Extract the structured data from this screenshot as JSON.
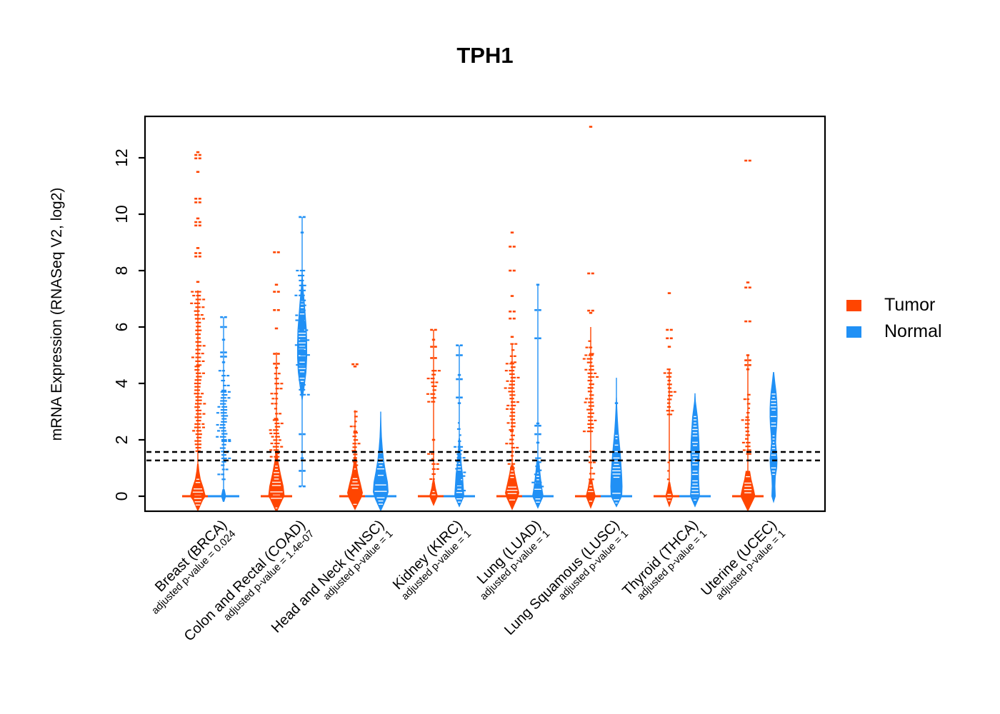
{
  "title": "TPH1",
  "y_axis": {
    "label": "mRNA Expression (RNASeq V2, log2)",
    "ticks": [
      0,
      2,
      4,
      6,
      8,
      10,
      12
    ]
  },
  "legend": {
    "items": [
      {
        "label": "Tumor",
        "color": "#FF4500"
      },
      {
        "label": "Normal",
        "color": "#2090F5"
      }
    ]
  },
  "chart_data": {
    "type": "scatter",
    "subtype": "beeswarm-strip-by-group",
    "title": "TPH1",
    "xlabel": "",
    "ylabel": "mRNA Expression (RNASeq V2, log2)",
    "ylim": [
      -0.6,
      13.5
    ],
    "yticks": [
      0,
      2,
      4,
      6,
      8,
      10,
      12
    ],
    "grid": false,
    "legend_position": "right",
    "threshold_lines": [
      1.57,
      1.27
    ],
    "series_colors": {
      "tumor": "#FF4500",
      "normal": "#2090F5"
    },
    "series_names": [
      "Tumor",
      "Normal"
    ],
    "categories": [
      "Breast (BRCA)",
      "Colon and Rectal (COAD)",
      "Head and Neck (HNSC)",
      "Kidney (KIRC)",
      "Lung (LUAD)",
      "Lung Squamous (LUSC)",
      "Thyroid (THCA)",
      "Uterine (UCEC)"
    ],
    "groups": [
      {
        "label": "Breast (BRCA)",
        "pvalue_label": "adjusted p-value = 0.024",
        "adjusted_p_value": 0.024,
        "tumor": {
          "median": 0,
          "line": [
            0,
            7.3
          ],
          "violin": [
            [
              -0.55,
              0
            ],
            [
              -0.15,
              7
            ],
            [
              0,
              11
            ],
            [
              0.3,
              8
            ],
            [
              0.6,
              4
            ],
            [
              0.9,
              2
            ],
            [
              1.15,
              1
            ]
          ],
          "clusters": [
            [
              1.6,
              4.6,
              26,
              7
            ],
            [
              4.65,
              7.25,
              20,
              6
            ]
          ],
          "outliers": [
            7.6,
            8.5,
            8.62,
            8.8,
            9.6,
            9.72,
            9.85,
            10.42,
            10.55,
            11.5,
            11.98,
            12.1,
            12.2
          ]
        },
        "normal": {
          "median": 0,
          "line": [
            0,
            6.35
          ],
          "violin": [
            [
              -0.2,
              1
            ],
            [
              0,
              3.5
            ],
            [
              0.25,
              1.5
            ]
          ],
          "clusters": [
            [
              0.6,
              0.95,
              3,
              3
            ],
            [
              1.1,
              1.95,
              8,
              5
            ],
            [
              2.0,
              3.7,
              17,
              7
            ],
            [
              3.75,
              4.45,
              5,
              4
            ]
          ],
          "outliers": [
            4.75,
            4.95,
            5.1,
            5.55,
            6.0,
            6.35
          ]
        }
      },
      {
        "label": "Colon and Rectal (COAD)",
        "pvalue_label": "adjusted p-value = 1.4e-07",
        "adjusted_p_value": 1.4e-07,
        "tumor": {
          "median": 0,
          "line": [
            0,
            5.1
          ],
          "violin": [
            [
              -0.6,
              0
            ],
            [
              -0.1,
              9
            ],
            [
              0,
              11.5
            ],
            [
              0.35,
              10
            ],
            [
              0.8,
              6
            ],
            [
              1.2,
              3
            ],
            [
              1.5,
              1.5
            ]
          ],
          "clusters": [
            [
              1.4,
              2.7,
              12,
              6
            ],
            [
              2.75,
              4.35,
              10,
              4
            ]
          ],
          "outliers": [
            4.55,
            4.7,
            5.05,
            5.95,
            6.6,
            7.25,
            7.5,
            8.65
          ]
        },
        "normal": {
          "median": null,
          "line": [
            0.35,
            9.9
          ],
          "violin": [
            [
              3.4,
              0.5
            ],
            [
              3.9,
              3.5
            ],
            [
              4.4,
              6
            ],
            [
              4.9,
              7
            ],
            [
              5.4,
              7
            ],
            [
              5.9,
              6.5
            ],
            [
              6.4,
              5
            ],
            [
              6.9,
              3.5
            ],
            [
              7.3,
              2
            ],
            [
              7.7,
              1
            ],
            [
              8.15,
              0.4
            ]
          ],
          "clusters": [
            [
              3.6,
              8.0,
              26,
              7
            ]
          ],
          "outliers": [
            9.35,
            9.9,
            2.2,
            1.35,
            0.9,
            0.35
          ]
        }
      },
      {
        "label": "Head and Neck (HNSC)",
        "pvalue_label": "adjusted p-value = 1",
        "adjusted_p_value": 1,
        "tumor": {
          "median": 0,
          "line": [
            0,
            3.05
          ],
          "violin": [
            [
              -0.5,
              0
            ],
            [
              -0.05,
              9
            ],
            [
              0.12,
              11
            ],
            [
              0.45,
              8
            ],
            [
              0.8,
              4.5
            ],
            [
              1.1,
              2.5
            ],
            [
              1.4,
              1.5
            ]
          ],
          "clusters": [
            [
              1.1,
              2.25,
              10,
              4
            ],
            [
              2.3,
              3.0,
              5,
              2.5
            ]
          ],
          "outliers": [
            4.6,
            4.68
          ]
        },
        "normal": {
          "median": 0,
          "line": [
            0,
            3.0
          ],
          "violin": [
            [
              -0.55,
              0
            ],
            [
              -0.1,
              8
            ],
            [
              0.15,
              11
            ],
            [
              0.5,
              10
            ],
            [
              0.9,
              7
            ],
            [
              1.3,
              4.5
            ],
            [
              1.7,
              2.8
            ],
            [
              2.1,
              1.6
            ],
            [
              2.5,
              1
            ],
            [
              3.0,
              0.3
            ]
          ],
          "clusters": [],
          "outliers": []
        }
      },
      {
        "label": "Kidney (KIRC)",
        "pvalue_label": "adjusted p-value = 1",
        "adjusted_p_value": 1,
        "tumor": {
          "median": 0,
          "line": [
            0,
            5.9
          ],
          "violin": [
            [
              -0.35,
              0
            ],
            [
              0,
              6
            ],
            [
              0.3,
              3
            ],
            [
              0.6,
              1
            ]
          ],
          "clusters": [
            [
              0.25,
              1.5,
              8,
              2.5
            ],
            [
              3.35,
              4.45,
              9,
              4.5
            ]
          ],
          "outliers": [
            2.0,
            4.9,
            5.3,
            5.55,
            5.9
          ]
        },
        "normal": {
          "median": 0,
          "line": [
            0,
            5.35
          ],
          "violin": [
            [
              -0.4,
              0
            ],
            [
              0,
              7
            ],
            [
              0.4,
              6
            ],
            [
              0.8,
              5
            ],
            [
              1.1,
              3.5
            ],
            [
              1.45,
              2.5
            ],
            [
              1.75,
              1.5
            ],
            [
              2.05,
              1
            ]
          ],
          "clusters": [
            [
              0.2,
              1.75,
              13,
              6
            ],
            [
              1.95,
              2.6,
              4,
              2
            ]
          ],
          "outliers": [
            3.3,
            3.5,
            4.15,
            4.3,
            5.0,
            5.35
          ]
        }
      },
      {
        "label": "Lung (LUAD)",
        "pvalue_label": "adjusted p-value = 1",
        "adjusted_p_value": 1,
        "tumor": {
          "median": 0,
          "line": [
            0,
            5.4
          ],
          "violin": [
            [
              -0.5,
              0
            ],
            [
              -0.05,
              8
            ],
            [
              0.12,
              10
            ],
            [
              0.45,
              7
            ],
            [
              0.8,
              4
            ],
            [
              1.1,
              2
            ]
          ],
          "clusters": [
            [
              1.0,
              2.3,
              10,
              4
            ],
            [
              2.35,
              4.7,
              20,
              6.5
            ],
            [
              4.75,
              5.4,
              4,
              2.5
            ]
          ],
          "outliers": [
            5.65,
            6.3,
            6.55,
            7.1,
            8.0,
            8.85,
            9.35
          ]
        },
        "normal": {
          "median": 0,
          "line": [
            0,
            7.5
          ],
          "violin": [
            [
              -0.45,
              0
            ],
            [
              0,
              8
            ],
            [
              0.3,
              6
            ],
            [
              0.6,
              4.5
            ],
            [
              0.95,
              3
            ],
            [
              1.25,
              2
            ]
          ],
          "clusters": [
            [
              0.2,
              1.35,
              9,
              6
            ]
          ],
          "outliers": [
            1.9,
            2.2,
            2.5,
            2.58,
            5.6,
            6.6,
            7.5
          ]
        }
      },
      {
        "label": "Lung Squamous (LUSC)",
        "pvalue_label": "adjusted p-value = 1",
        "adjusted_p_value": 1,
        "tumor": {
          "median": 0,
          "line": [
            0,
            6.0
          ],
          "violin": [
            [
              -0.45,
              0
            ],
            [
              0,
              7
            ],
            [
              0.3,
              4
            ],
            [
              0.6,
              2
            ]
          ],
          "clusters": [
            [
              0.6,
              1.6,
              6,
              2
            ],
            [
              2.3,
              5.0,
              22,
              6
            ],
            [
              5.05,
              5.5,
              3,
              2
            ]
          ],
          "outliers": [
            6.5,
            6.58,
            7.9,
            13.1
          ]
        },
        "normal": {
          "median": 0,
          "line": [
            0,
            4.2
          ],
          "violin": [
            [
              -0.4,
              0
            ],
            [
              0,
              8
            ],
            [
              0.35,
              8.5
            ],
            [
              0.7,
              8
            ],
            [
              1.1,
              7
            ],
            [
              1.5,
              6
            ],
            [
              1.9,
              4.5
            ],
            [
              2.3,
              3
            ],
            [
              2.7,
              2
            ],
            [
              3.1,
              1.2
            ],
            [
              3.5,
              0.6
            ]
          ],
          "clusters": [],
          "outliers": [
            3.3
          ]
        }
      },
      {
        "label": "Thyroid (THCA)",
        "pvalue_label": "adjusted p-value = 1",
        "adjusted_p_value": 1,
        "tumor": {
          "median": 0,
          "line": [
            0,
            4.5
          ],
          "violin": [
            [
              -0.4,
              0
            ],
            [
              0,
              5.5
            ],
            [
              0.25,
              3
            ],
            [
              0.5,
              1.2
            ]
          ],
          "clusters": [
            [
              0.3,
              1.2,
              4,
              1.5
            ],
            [
              2.9,
              4.5,
              13,
              4.5
            ]
          ],
          "outliers": [
            5.3,
            5.6,
            5.9,
            7.2
          ]
        },
        "normal": {
          "median": 0,
          "line": [
            0,
            3.65
          ],
          "violin": [
            [
              -0.4,
              0
            ],
            [
              0,
              7
            ],
            [
              0.4,
              6
            ],
            [
              0.8,
              5.5
            ],
            [
              1.2,
              6
            ],
            [
              1.6,
              6.5
            ],
            [
              2.0,
              6
            ],
            [
              2.4,
              5
            ],
            [
              2.8,
              4
            ],
            [
              3.1,
              2.5
            ],
            [
              3.35,
              1.2
            ],
            [
              3.6,
              0.5
            ]
          ],
          "clusters": [],
          "outliers": []
        }
      },
      {
        "label": "Uterine (UCEC)",
        "pvalue_label": "adjusted p-value = 1",
        "adjusted_p_value": 1,
        "tumor": {
          "median": 0,
          "line": [
            0,
            5.0
          ],
          "violin": [
            [
              -0.55,
              0
            ],
            [
              -0.1,
              8.5
            ],
            [
              0,
              10.5
            ],
            [
              0.3,
              8
            ],
            [
              0.6,
              5
            ],
            [
              0.9,
              3
            ]
          ],
          "clusters": [
            [
              1.5,
              2.7,
              10,
              5
            ],
            [
              2.8,
              3.6,
              6,
              3
            ]
          ],
          "outliers": [
            4.5,
            4.65,
            4.82,
            5.0,
            6.2,
            7.4,
            7.58,
            11.9
          ]
        },
        "normal": {
          "median": null,
          "line": [
            -0.1,
            4.4
          ],
          "violin": [
            [
              -0.25,
              0
            ],
            [
              0,
              3
            ],
            [
              0.35,
              2.5
            ],
            [
              0.7,
              3
            ],
            [
              1.0,
              5
            ],
            [
              1.3,
              5.5
            ],
            [
              1.6,
              4.5
            ],
            [
              1.9,
              3.5
            ],
            [
              2.2,
              4
            ],
            [
              2.5,
              5
            ],
            [
              2.8,
              5.5
            ],
            [
              3.1,
              5.5
            ],
            [
              3.4,
              5
            ],
            [
              3.7,
              4
            ],
            [
              4.0,
              2.5
            ],
            [
              4.4,
              0.8
            ]
          ],
          "clusters": [],
          "outliers": []
        }
      }
    ]
  }
}
